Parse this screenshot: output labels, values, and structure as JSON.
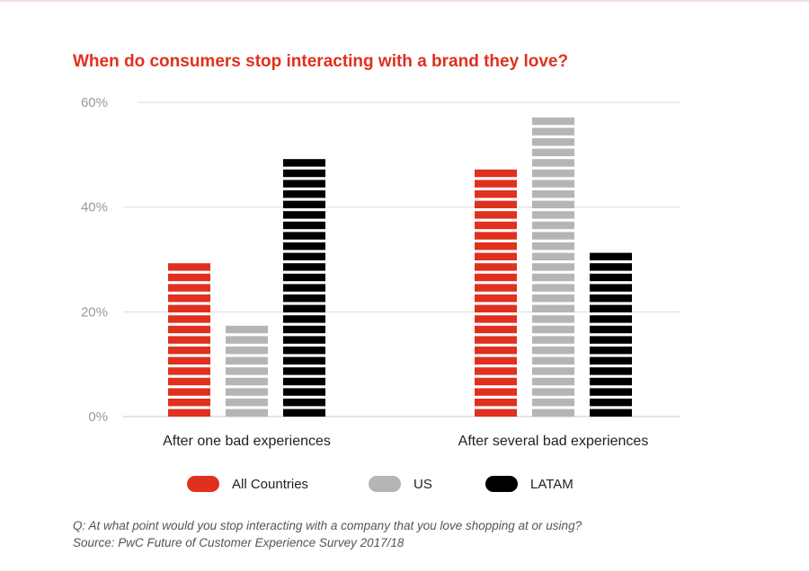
{
  "title": "When do consumers stop interacting with a brand they love?",
  "chart_data": {
    "type": "bar",
    "title": "When do consumers stop interacting with a brand they love?",
    "categories": [
      "After one bad experiences",
      "After several bad experiences"
    ],
    "series": [
      {
        "name": "All Countries",
        "color": "#e0301e",
        "values": [
          30,
          48
        ]
      },
      {
        "name": "US",
        "color": "#b5b5b5",
        "values": [
          18,
          58
        ]
      },
      {
        "name": "LATAM",
        "color": "#000000",
        "values": [
          50,
          32
        ]
      }
    ],
    "ylim": [
      0,
      60
    ],
    "yticks": [
      0,
      20,
      40,
      60
    ],
    "ytick_labels": [
      "0%",
      "20%",
      "40%",
      "60%"
    ],
    "xlabel": "",
    "ylabel": "",
    "grid": true,
    "legend_position": "bottom"
  },
  "legend": [
    {
      "label": "All Countries",
      "color": "#e0301e"
    },
    {
      "label": "US",
      "color": "#b5b5b5"
    },
    {
      "label": "LATAM",
      "color": "#000000"
    }
  ],
  "footnote": {
    "question": "Q: At what point would you stop interacting with a company that you love shopping at or using?",
    "source": "Source: PwC Future of Customer Experience Survey 2017/18"
  }
}
